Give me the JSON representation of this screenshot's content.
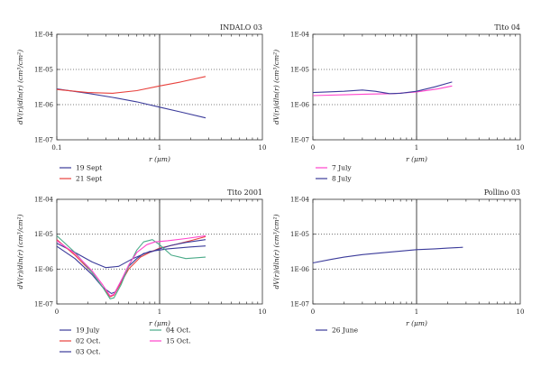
{
  "chart_data": [
    {
      "type": "line",
      "title": "INDALO 03",
      "xlabel": "r (μm)",
      "ylabel": "dV(r)/dln(r) (cm³/cm²)",
      "xscale": "log",
      "yscale": "log",
      "xlim": [
        0.1,
        10
      ],
      "ylim": [
        1e-07,
        0.0001
      ],
      "xticklabels": [
        "0.1",
        "1",
        "10"
      ],
      "yticklabels": [
        "1E-07",
        "1E-06",
        "1E-05",
        "1E-04"
      ],
      "grid": "dotted horizontal",
      "legend_placement": "below",
      "legend_columns": 1,
      "series": [
        {
          "name": "19 Sept",
          "color": "#3b3b9a",
          "x": [
            0.1,
            0.2,
            0.35,
            0.6,
            1.0,
            1.6,
            2.8
          ],
          "y": [
            2.8e-06,
            2.1e-06,
            1.6e-06,
            1.2e-06,
            8.5e-07,
            6.2e-07,
            4.2e-07
          ]
        },
        {
          "name": "21 Sept",
          "color": "#e8413c",
          "x": [
            0.1,
            0.2,
            0.35,
            0.6,
            1.0,
            1.6,
            2.8
          ],
          "y": [
            2.7e-06,
            2.2e-06,
            2.1e-06,
            2.5e-06,
            3.4e-06,
            4.4e-06,
            6.3e-06
          ]
        }
      ]
    },
    {
      "type": "line",
      "title": "Tito 04",
      "xlabel": "r (μm)",
      "ylabel": "dV(r)/dln(r) (cm³/cm²)",
      "xscale": "log",
      "yscale": "log",
      "xlim": [
        0.1,
        10
      ],
      "ylim": [
        1e-07,
        0.0001
      ],
      "xticklabels": [
        "0",
        "1",
        "10"
      ],
      "yticklabels": [
        "1E-07",
        "1E-06",
        "1E-05",
        "1E-04"
      ],
      "grid": "dotted horizontal",
      "legend_placement": "below",
      "legend_columns": 1,
      "series": [
        {
          "name": "7 July",
          "color": "#ff44cc",
          "x": [
            0.1,
            0.2,
            0.35,
            0.6,
            1.0,
            1.6,
            2.2
          ],
          "y": [
            1.8e-06,
            1.9e-06,
            2e-06,
            2.05e-06,
            2.3e-06,
            2.8e-06,
            3.4e-06
          ]
        },
        {
          "name": "8 July",
          "color": "#3b3b9a",
          "x": [
            0.1,
            0.2,
            0.3,
            0.4,
            0.55,
            0.7,
            1.0,
            1.5,
            2.2
          ],
          "y": [
            2.2e-06,
            2.4e-06,
            2.6e-06,
            2.4e-06,
            2.05e-06,
            2.1e-06,
            2.4e-06,
            3.2e-06,
            4.4e-06
          ]
        }
      ]
    },
    {
      "type": "line",
      "title": "Tito 2001",
      "xlabel": "r (μm)",
      "ylabel": "dV(r)/dln(r) (cm³/cm²)",
      "xscale": "log",
      "yscale": "log",
      "xlim": [
        0.1,
        10
      ],
      "ylim": [
        1e-07,
        0.0001
      ],
      "xticklabels": [
        "0",
        "1",
        "10"
      ],
      "yticklabels": [
        "1E-07",
        "1E-06",
        "1E-05",
        "1E-04"
      ],
      "grid": "dotted horizontal",
      "legend_placement": "below",
      "legend_columns": 2,
      "series": [
        {
          "name": "19 July",
          "color": "#3b3b9a",
          "x": [
            0.1,
            0.15,
            0.22,
            0.3,
            0.4,
            0.55,
            0.8,
            1.2,
            2.0,
            2.8
          ],
          "y": [
            5.5e-06,
            3e-06,
            1.6e-06,
            1.1e-06,
            1.2e-06,
            2e-06,
            3.2e-06,
            3.8e-06,
            4.3e-06,
            4.6e-06
          ]
        },
        {
          "name": "02 Oct.",
          "color": "#e8413c",
          "x": [
            0.1,
            0.15,
            0.22,
            0.28,
            0.33,
            0.36,
            0.42,
            0.5,
            0.65,
            0.8,
            1.0,
            1.4,
            2.0,
            2.8
          ],
          "y": [
            7e-06,
            2.5e-06,
            8e-07,
            3e-07,
            1.6e-07,
            1.8e-07,
            4e-07,
            1e-06,
            2.2e-06,
            3e-06,
            4e-06,
            5e-06,
            6.5e-06,
            8.5e-06
          ]
        },
        {
          "name": "03 Oct.",
          "color": "#3b3b9a",
          "x": [
            0.1,
            0.15,
            0.22,
            0.28,
            0.34,
            0.37,
            0.42,
            0.5,
            0.6,
            0.7,
            0.85,
            1.0,
            1.3,
            1.8,
            2.8
          ],
          "y": [
            4.5e-06,
            2e-06,
            7e-07,
            3e-07,
            2e-07,
            2.2e-07,
            4.5e-07,
            1.2e-06,
            2e-06,
            2.8e-06,
            3.2e-06,
            3.8e-06,
            4.8e-06,
            5.8e-06,
            7e-06
          ]
        },
        {
          "name": "04 Oct.",
          "color": "#4aaa88",
          "x": [
            0.1,
            0.15,
            0.22,
            0.28,
            0.33,
            0.36,
            0.42,
            0.5,
            0.6,
            0.7,
            0.85,
            1.0,
            1.3,
            1.8,
            2.8
          ],
          "y": [
            9e-06,
            3e-06,
            8e-07,
            3e-07,
            1.4e-07,
            1.5e-07,
            3.5e-07,
            1.2e-06,
            3.5e-06,
            6e-06,
            7e-06,
            5e-06,
            2.5e-06,
            2e-06,
            2.2e-06
          ]
        },
        {
          "name": "15 Oct.",
          "color": "#ff44cc",
          "x": [
            0.1,
            0.15,
            0.22,
            0.28,
            0.33,
            0.36,
            0.42,
            0.5,
            0.6,
            0.75,
            0.9,
            1.2,
            1.8,
            2.8
          ],
          "y": [
            6.5e-06,
            2.8e-06,
            9e-07,
            3.5e-07,
            1.7e-07,
            1.9e-07,
            4.5e-07,
            1.3e-06,
            3e-06,
            5e-06,
            6e-06,
            6.5e-06,
            7.5e-06,
            9e-06
          ]
        }
      ]
    },
    {
      "type": "line",
      "title": "Pollino 03",
      "xlabel": "r (μm)",
      "ylabel": "dV(r)/dln(r) (cm³/cm²)",
      "xscale": "log",
      "yscale": "log",
      "xlim": [
        0.1,
        10
      ],
      "ylim": [
        1e-07,
        0.0001
      ],
      "xticklabels": [
        "0",
        "1",
        "10"
      ],
      "yticklabels": [
        "1E-07",
        "1E-06",
        "1E-05",
        "1E-04"
      ],
      "grid": "dotted horizontal",
      "legend_placement": "below",
      "legend_columns": 1,
      "series": [
        {
          "name": "26 June",
          "color": "#3b3b9a",
          "x": [
            0.1,
            0.15,
            0.2,
            0.3,
            0.5,
            0.8,
            1.0,
            1.5,
            2.0,
            2.8
          ],
          "y": [
            1.5e-06,
            1.9e-06,
            2.2e-06,
            2.6e-06,
            3e-06,
            3.4e-06,
            3.6e-06,
            3.8e-06,
            4e-06,
            4.2e-06
          ]
        }
      ]
    }
  ]
}
